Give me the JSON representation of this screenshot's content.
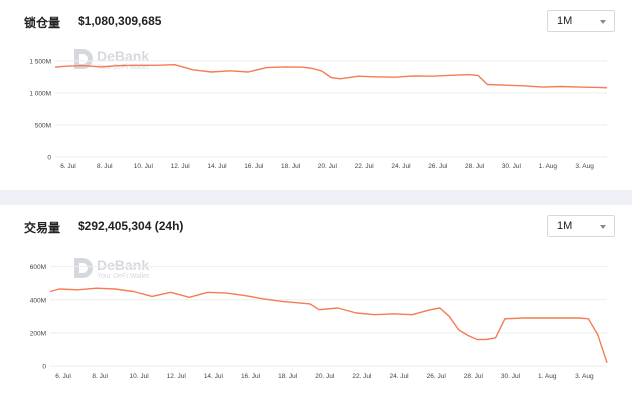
{
  "watermark": {
    "name": "DeBank",
    "tagline": "Your DeFi Wallet"
  },
  "panels": {
    "tvl": {
      "label": "锁仓量",
      "value": "$1,080,309,685",
      "range_select": "1M"
    },
    "volume": {
      "label": "交易量",
      "value": "$292,405,304 (24h)",
      "range_select": "1M"
    }
  },
  "colors": {
    "line": "#f47c54",
    "grid": "#eeeeee",
    "axis_text": "#444444",
    "divider": "#eef0f5"
  },
  "chart_data": [
    {
      "type": "line",
      "title": "锁仓量",
      "y_ticks": [
        "0",
        "500M",
        "1 000M",
        "1 500M"
      ],
      "y_tick_values": [
        0,
        500,
        1000,
        1500
      ],
      "ylim": [
        0,
        1700
      ],
      "y_unit": "M",
      "x_tick_labels": [
        "6. Jul",
        "8. Jul",
        "10. Jul",
        "12. Jul",
        "14. Jul",
        "16. Jul",
        "18. Jul",
        "20. Jul",
        "22. Jul",
        "24. Jul",
        "26. Jul",
        "28. Jul",
        "30. Jul",
        "1. Aug",
        "3. Aug"
      ],
      "x_tick_days": [
        6,
        8,
        10,
        12,
        14,
        16,
        18,
        20,
        22,
        24,
        26,
        28,
        30,
        32,
        34
      ],
      "xlim": [
        5.5,
        35.5
      ],
      "grid": true,
      "series": [
        {
          "x": [
            5.5,
            6,
            7,
            8,
            9,
            10,
            11,
            12,
            13,
            14,
            15,
            16,
            17,
            18,
            19,
            19.5,
            20,
            20.5,
            21,
            22,
            23,
            24,
            25,
            26,
            27,
            28,
            28.5,
            29,
            30,
            31,
            32,
            33,
            34,
            35,
            35.5
          ],
          "y": [
            1400,
            1415,
            1425,
            1405,
            1425,
            1430,
            1430,
            1440,
            1360,
            1325,
            1345,
            1325,
            1395,
            1405,
            1400,
            1380,
            1340,
            1240,
            1220,
            1260,
            1250,
            1245,
            1265,
            1260,
            1275,
            1285,
            1270,
            1130,
            1120,
            1110,
            1090,
            1100,
            1090,
            1085,
            1080
          ]
        }
      ]
    },
    {
      "type": "line",
      "title": "交易量",
      "y_ticks": [
        "0",
        "200M",
        "400M",
        "600M"
      ],
      "y_tick_values": [
        0,
        200,
        400,
        600
      ],
      "ylim": [
        0,
        640
      ],
      "y_unit": "M",
      "x_tick_labels": [
        "6. Jul",
        "8. Jul",
        "10. Jul",
        "12. Jul",
        "14. Jul",
        "16. Jul",
        "18. Jul",
        "20. Jul",
        "22. Jul",
        "24. Jul",
        "26. Jul",
        "28. Jul",
        "30. Jul",
        "1. Aug",
        "3. Aug"
      ],
      "x_tick_days": [
        6,
        8,
        10,
        12,
        14,
        16,
        18,
        20,
        22,
        24,
        26,
        28,
        30,
        32,
        34
      ],
      "xlim": [
        5.5,
        35.5
      ],
      "grid": true,
      "series": [
        {
          "x": [
            5.5,
            6,
            7,
            8,
            9,
            10,
            11,
            12,
            13,
            14,
            15,
            16,
            17,
            18,
            19,
            19.5,
            20,
            21,
            22,
            23,
            24,
            25,
            26,
            26.5,
            27,
            27.5,
            28,
            28.5,
            29,
            29.5,
            30,
            31,
            32,
            33,
            34,
            34.5,
            35,
            35.5
          ],
          "y": [
            450,
            465,
            460,
            470,
            465,
            450,
            420,
            445,
            415,
            445,
            440,
            425,
            405,
            390,
            380,
            375,
            340,
            350,
            320,
            310,
            315,
            310,
            340,
            350,
            300,
            220,
            185,
            160,
            160,
            170,
            285,
            290,
            290,
            290,
            290,
            285,
            190,
            20
          ]
        }
      ]
    }
  ]
}
